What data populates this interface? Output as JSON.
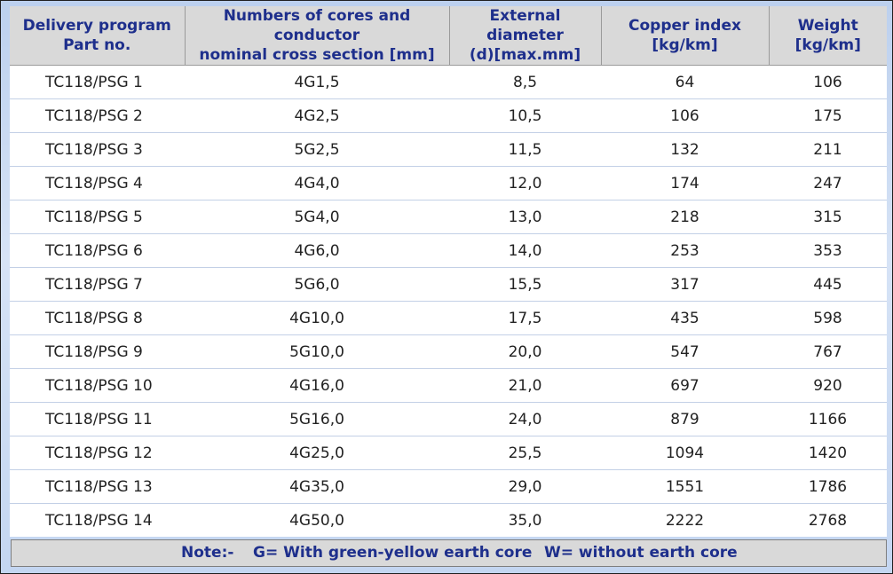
{
  "headers": [
    "Delivery program\nPart no.",
    "Numbers of cores and conductor\nnominal cross section [mm]",
    "External diameter\n(d)[max.mm]",
    "Copper index\n[kg/km]",
    "Weight\n[kg/km]"
  ],
  "rows": [
    [
      "TC118/PSG 1",
      "4G1,5",
      "8,5",
      "64",
      "106"
    ],
    [
      "TC118/PSG 2",
      "4G2,5",
      "10,5",
      "106",
      "175"
    ],
    [
      "TC118/PSG 3",
      "5G2,5",
      "11,5",
      "132",
      "211"
    ],
    [
      "TC118/PSG 4",
      "4G4,0",
      "12,0",
      "174",
      "247"
    ],
    [
      "TC118/PSG 5",
      "5G4,0",
      "13,0",
      "218",
      "315"
    ],
    [
      "TC118/PSG 6",
      "4G6,0",
      "14,0",
      "253",
      "353"
    ],
    [
      "TC118/PSG 7",
      "5G6,0",
      "15,5",
      "317",
      "445"
    ],
    [
      "TC118/PSG 8",
      "4G10,0",
      "17,5",
      "435",
      "598"
    ],
    [
      "TC118/PSG 9",
      "5G10,0",
      "20,0",
      "547",
      "767"
    ],
    [
      "TC118/PSG 10",
      "4G16,0",
      "21,0",
      "697",
      "920"
    ],
    [
      "TC118/PSG 11",
      "5G16,0",
      "24,0",
      "879",
      "1166"
    ],
    [
      "TC118/PSG 12",
      "4G25,0",
      "25,5",
      "1094",
      "1420"
    ],
    [
      "TC118/PSG 13",
      "4G35,0",
      "29,0",
      "1551",
      "1786"
    ],
    [
      "TC118/PSG 14",
      "4G50,0",
      "35,0",
      "2222",
      "2768"
    ]
  ],
  "note": {
    "label": "Note:-",
    "g": "G= With green-yellow earth core",
    "w": "W= without earth core"
  },
  "colors": {
    "header_text": "#1e2f8c",
    "header_bg": "#d9d9d9",
    "frame_bg": "#c4d6f1"
  }
}
